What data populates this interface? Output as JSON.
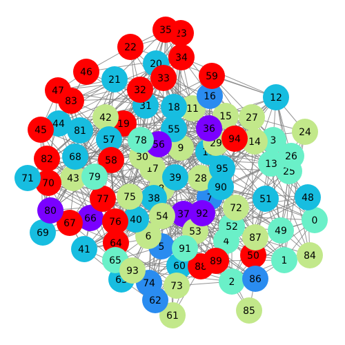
{
  "graph": {
    "edge_color": "#808080",
    "palette": {
      "violet": "#7a00ff",
      "blue": "#2a8cf0",
      "cyan": "#17bde0",
      "aqua": "#6af0c8",
      "lime": "#c2e88a",
      "red": "#ff0000"
    },
    "nodes": [
      {
        "id": "0",
        "color": "aqua"
      },
      {
        "id": "1",
        "color": "aqua"
      },
      {
        "id": "2",
        "color": "aqua"
      },
      {
        "id": "3",
        "color": "aqua"
      },
      {
        "id": "4",
        "color": "aqua"
      },
      {
        "id": "5",
        "color": "blue"
      },
      {
        "id": "6",
        "color": "lime"
      },
      {
        "id": "7",
        "color": "blue"
      },
      {
        "id": "8",
        "color": "lime"
      },
      {
        "id": "9",
        "color": "lime"
      },
      {
        "id": "10",
        "color": "cyan"
      },
      {
        "id": "11",
        "color": "lime"
      },
      {
        "id": "12",
        "color": "cyan"
      },
      {
        "id": "13",
        "color": "aqua"
      },
      {
        "id": "14",
        "color": "lime"
      },
      {
        "id": "15",
        "color": "lime"
      },
      {
        "id": "16",
        "color": "blue"
      },
      {
        "id": "17",
        "color": "lime"
      },
      {
        "id": "18",
        "color": "cyan"
      },
      {
        "id": "19",
        "color": "red"
      },
      {
        "id": "20",
        "color": "cyan"
      },
      {
        "id": "21",
        "color": "cyan"
      },
      {
        "id": "22",
        "color": "red"
      },
      {
        "id": "23",
        "color": "red"
      },
      {
        "id": "24",
        "color": "lime"
      },
      {
        "id": "25",
        "color": "aqua"
      },
      {
        "id": "26",
        "color": "aqua"
      },
      {
        "id": "27",
        "color": "lime"
      },
      {
        "id": "28",
        "color": "lime"
      },
      {
        "id": "29",
        "color": "lime"
      },
      {
        "id": "30",
        "color": "lime"
      },
      {
        "id": "31",
        "color": "cyan"
      },
      {
        "id": "32",
        "color": "red"
      },
      {
        "id": "33",
        "color": "red"
      },
      {
        "id": "34",
        "color": "red"
      },
      {
        "id": "35",
        "color": "red"
      },
      {
        "id": "36",
        "color": "violet"
      },
      {
        "id": "37",
        "color": "violet"
      },
      {
        "id": "38",
        "color": "cyan"
      },
      {
        "id": "39",
        "color": "cyan"
      },
      {
        "id": "40",
        "color": "cyan"
      },
      {
        "id": "41",
        "color": "cyan"
      },
      {
        "id": "42",
        "color": "lime"
      },
      {
        "id": "43",
        "color": "lime"
      },
      {
        "id": "44",
        "color": "cyan"
      },
      {
        "id": "45",
        "color": "red"
      },
      {
        "id": "46",
        "color": "red"
      },
      {
        "id": "47",
        "color": "red"
      },
      {
        "id": "48",
        "color": "cyan"
      },
      {
        "id": "49",
        "color": "aqua"
      },
      {
        "id": "50",
        "color": "red"
      },
      {
        "id": "51",
        "color": "cyan"
      },
      {
        "id": "52",
        "color": "aqua"
      },
      {
        "id": "53",
        "color": "lime"
      },
      {
        "id": "54",
        "color": "lime"
      },
      {
        "id": "55",
        "color": "cyan"
      },
      {
        "id": "56",
        "color": "violet"
      },
      {
        "id": "57",
        "color": "cyan"
      },
      {
        "id": "58",
        "color": "red"
      },
      {
        "id": "59",
        "color": "red"
      },
      {
        "id": "60",
        "color": "cyan"
      },
      {
        "id": "61",
        "color": "lime"
      },
      {
        "id": "62",
        "color": "blue"
      },
      {
        "id": "63",
        "color": "cyan"
      },
      {
        "id": "64",
        "color": "red"
      },
      {
        "id": "65",
        "color": "aqua"
      },
      {
        "id": "66",
        "color": "violet"
      },
      {
        "id": "67",
        "color": "red"
      },
      {
        "id": "68",
        "color": "cyan"
      },
      {
        "id": "69",
        "color": "cyan"
      },
      {
        "id": "70",
        "color": "red"
      },
      {
        "id": "71",
        "color": "cyan"
      },
      {
        "id": "72",
        "color": "lime"
      },
      {
        "id": "73",
        "color": "lime"
      },
      {
        "id": "74",
        "color": "blue"
      },
      {
        "id": "75",
        "color": "lime"
      },
      {
        "id": "76",
        "color": "red"
      },
      {
        "id": "77",
        "color": "red"
      },
      {
        "id": "78",
        "color": "aqua"
      },
      {
        "id": "79",
        "color": "aqua"
      },
      {
        "id": "80",
        "color": "violet"
      },
      {
        "id": "81",
        "color": "cyan"
      },
      {
        "id": "82",
        "color": "red"
      },
      {
        "id": "83",
        "color": "red"
      },
      {
        "id": "84",
        "color": "lime"
      },
      {
        "id": "85",
        "color": "lime"
      },
      {
        "id": "86",
        "color": "blue"
      },
      {
        "id": "87",
        "color": "lime"
      },
      {
        "id": "88",
        "color": "red"
      },
      {
        "id": "89",
        "color": "red"
      },
      {
        "id": "90",
        "color": "cyan"
      },
      {
        "id": "91",
        "color": "aqua"
      },
      {
        "id": "92",
        "color": "violet"
      },
      {
        "id": "93",
        "color": "lime"
      },
      {
        "id": "94",
        "color": "red"
      },
      {
        "id": "95",
        "color": "cyan"
      }
    ]
  }
}
